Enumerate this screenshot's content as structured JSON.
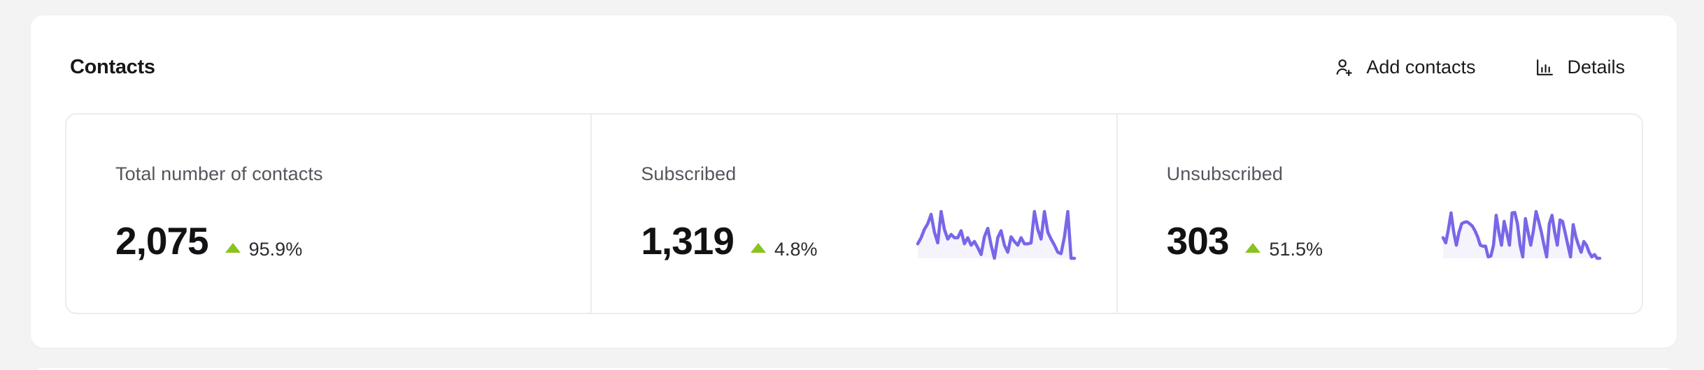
{
  "panel": {
    "title": "Contacts",
    "actions": {
      "add_contacts": {
        "label": "Add contacts",
        "icon": "user-plus-icon"
      },
      "details": {
        "label": "Details",
        "icon": "bar-chart-icon"
      }
    }
  },
  "stats": [
    {
      "label": "Total number of contacts",
      "value": "2,075",
      "change": "95.9%",
      "trend": "up"
    },
    {
      "label": "Subscribed",
      "value": "1,319",
      "change": "4.8%",
      "trend": "up"
    },
    {
      "label": "Unsubscribed",
      "value": "303",
      "change": "51.5%",
      "trend": "up"
    }
  ],
  "colors": {
    "background": "#f3f3f4",
    "card": "#ffffff",
    "border": "#ececee",
    "accent_purple": "#7767e8",
    "spark_fill": "#f5f3fc",
    "trend_green": "#8bc21c",
    "text_primary": "#18181b",
    "text_muted": "#55555e"
  },
  "chart_data": [
    {
      "type": "area",
      "title": "Subscribed sparkline",
      "xlabel": "",
      "ylabel": "",
      "axes_visible": false,
      "ylim": [
        0,
        100
      ],
      "values": [
        31,
        44,
        62,
        74,
        94,
        56,
        33,
        100,
        62,
        41,
        51,
        44,
        44,
        59,
        31,
        44,
        28,
        36,
        23,
        8,
        46,
        64,
        28,
        0,
        44,
        59,
        28,
        13,
        46,
        36,
        28,
        44,
        31,
        31,
        33,
        100,
        62,
        41,
        100,
        56,
        41,
        28,
        13,
        10,
        46,
        100,
        0,
        0
      ]
    },
    {
      "type": "area",
      "title": "Unsubscribed sparkline",
      "xlabel": "",
      "ylabel": "",
      "axes_visible": false,
      "ylim": [
        0,
        100
      ],
      "values": [
        44,
        33,
        62,
        97,
        56,
        28,
        56,
        74,
        77,
        78,
        74,
        69,
        59,
        46,
        28,
        26,
        26,
        3,
        5,
        28,
        92,
        56,
        28,
        79,
        54,
        28,
        97,
        98,
        74,
        28,
        3,
        85,
        56,
        28,
        59,
        100,
        79,
        56,
        28,
        3,
        74,
        92,
        56,
        28,
        82,
        79,
        54,
        28,
        3,
        72,
        46,
        28,
        13,
        36,
        28,
        13,
        3,
        8,
        0,
        0
      ]
    }
  ]
}
